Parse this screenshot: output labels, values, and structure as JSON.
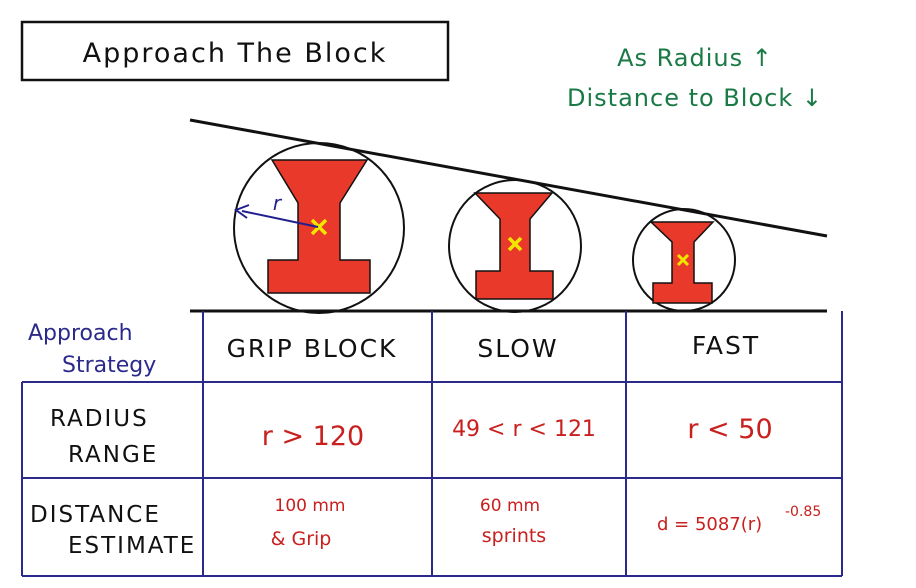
{
  "title": "Approach The Block",
  "note": {
    "line1": "As Radius ↑",
    "line2": "Distance to Block ↓"
  },
  "radius_symbol": "r",
  "colors": {
    "block_fill": "#e8392a",
    "center_mark": "#f2e600",
    "ink": "#111111",
    "table_lines": "#2b2a8c",
    "note_green": "#1a7a45",
    "value_red": "#c8201e",
    "radius_arrow": "#1f1f8f"
  },
  "table": {
    "strategy_label_line1": "Approach",
    "strategy_label_line2": "Strategy",
    "radius_label_line1": "RADIUS",
    "radius_label_line2": "RANGE",
    "distance_label_line1": "DISTANCE",
    "distance_label_line2": "ESTIMATE",
    "columns": [
      {
        "header": "GRIP BLOCK",
        "radius_range": "r > 120",
        "distance_line1": "100  mm",
        "distance_line2": "& Grip"
      },
      {
        "header": "SLOW",
        "radius_range": "49 < r < 121",
        "distance_line1": "60  mm",
        "distance_line2": "sprints"
      },
      {
        "header": "FAST",
        "radius_range": "r < 50",
        "distance_formula": "d = 5087(r)",
        "distance_exponent": "-0.85"
      }
    ]
  }
}
